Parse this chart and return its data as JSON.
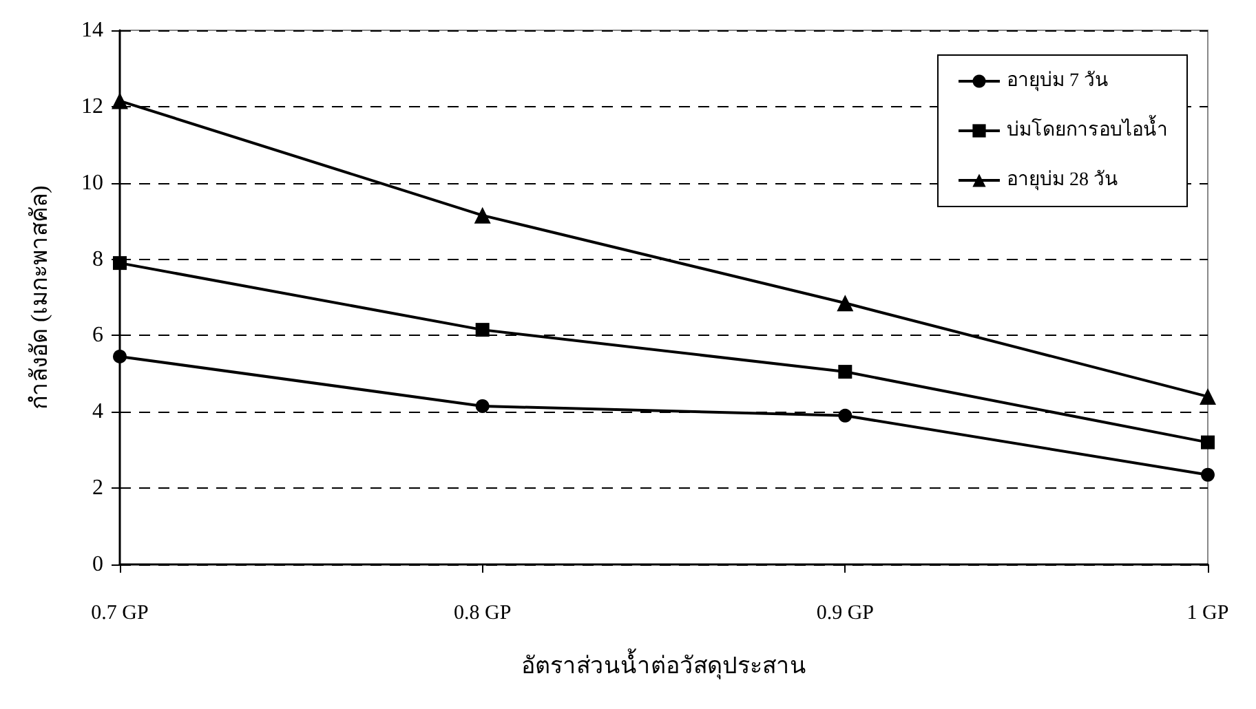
{
  "chart_data": {
    "type": "line",
    "xlabel": "อัตราส่วนน้ำต่อวัสดุประสาน",
    "ylabel": "กำลังอัด (เมกะพาสคัล)",
    "categories": [
      "0.7 GP",
      "0.8 GP",
      "0.9 GP",
      "1 GP"
    ],
    "series": [
      {
        "name": "อายุบ่ม 7 วัน",
        "color": "#000000",
        "marker": "circle",
        "values": [
          5.45,
          4.15,
          3.9,
          2.35
        ]
      },
      {
        "name": "บ่มโดยการอบไอน้ำ",
        "color": "#000000",
        "marker": "square",
        "values": [
          7.9,
          6.15,
          5.05,
          3.2
        ]
      },
      {
        "name": "อายุบ่ม 28 วัน",
        "color": "#000000",
        "marker": "triangle",
        "values": [
          12.15,
          9.15,
          6.85,
          4.4
        ]
      }
    ],
    "ylim": [
      0,
      14
    ],
    "yticks": [
      0,
      2,
      4,
      6,
      8,
      10,
      12,
      14
    ],
    "grid": "y",
    "legend": "top right",
    "line_style": "solid"
  }
}
